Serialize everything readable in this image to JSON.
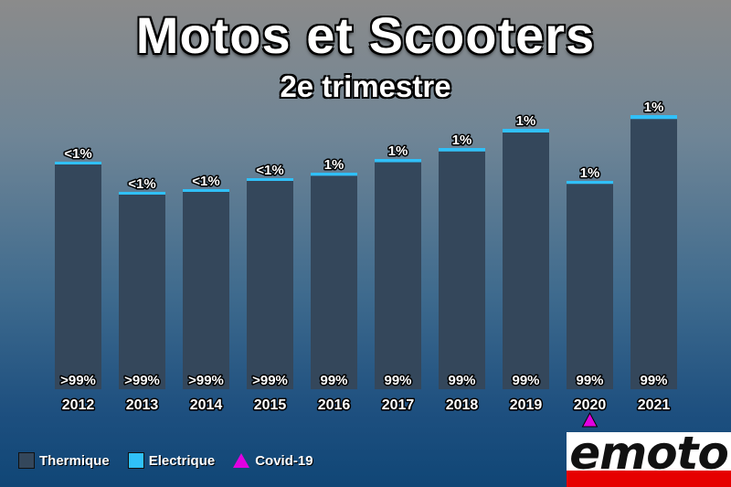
{
  "title": "Motos et Scooters",
  "subtitle": "2e trimestre",
  "chart_data": {
    "type": "bar",
    "stacked": true,
    "categories": [
      "2012",
      "2013",
      "2014",
      "2015",
      "2016",
      "2017",
      "2018",
      "2019",
      "2020",
      "2021"
    ],
    "series": [
      {
        "name": "Thermique",
        "color": "#34475b",
        "values": [
          99.6,
          99.6,
          99.6,
          99.6,
          99,
          99,
          99,
          99,
          99,
          99
        ],
        "labels": [
          ">99%",
          ">99%",
          ">99%",
          ">99%",
          "99%",
          "99%",
          "99%",
          "99%",
          "99%",
          "99%"
        ]
      },
      {
        "name": "Electrique",
        "color": "#30c0f8",
        "values": [
          0.4,
          0.4,
          0.4,
          0.4,
          1,
          1,
          1,
          1,
          1,
          1
        ],
        "labels": [
          "<1%",
          "<1%",
          "<1%",
          "<1%",
          "1%",
          "1%",
          "1%",
          "1%",
          "1%",
          "1%"
        ]
      }
    ],
    "relative_totals": [
      0.83,
      0.72,
      0.73,
      0.77,
      0.79,
      0.84,
      0.88,
      0.95,
      0.76,
      1.0
    ],
    "annotations": [
      {
        "category": "2020",
        "marker": "triangle",
        "color": "#e100e1",
        "label": "Covid-19"
      }
    ],
    "legend_position": "bottom-left",
    "grid": false
  },
  "legend": [
    {
      "label": "Thermique",
      "color": "#34475b"
    },
    {
      "label": "Electrique",
      "color": "#30c0f8"
    },
    {
      "label": "Covid-19",
      "color": "#e100e1"
    }
  ],
  "logo": {
    "text": "emoto",
    "colors": [
      "#111111",
      "#e60000"
    ]
  }
}
